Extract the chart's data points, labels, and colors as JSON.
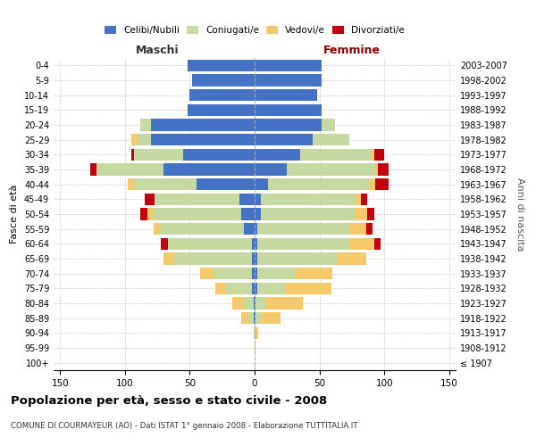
{
  "age_groups": [
    "100+",
    "95-99",
    "90-94",
    "85-89",
    "80-84",
    "75-79",
    "70-74",
    "65-69",
    "60-64",
    "55-59",
    "50-54",
    "45-49",
    "40-44",
    "35-39",
    "30-34",
    "25-29",
    "20-24",
    "15-19",
    "10-14",
    "5-9",
    "0-4"
  ],
  "birth_years": [
    "≤ 1907",
    "1908-1912",
    "1913-1917",
    "1918-1922",
    "1923-1927",
    "1928-1932",
    "1933-1937",
    "1938-1942",
    "1943-1947",
    "1948-1952",
    "1953-1957",
    "1958-1962",
    "1963-1967",
    "1968-1972",
    "1973-1977",
    "1978-1982",
    "1983-1987",
    "1988-1992",
    "1993-1997",
    "1998-2002",
    "2003-2007"
  ],
  "male_celibi": [
    0,
    0,
    0,
    1,
    1,
    2,
    2,
    2,
    2,
    8,
    10,
    12,
    45,
    70,
    55,
    80,
    80,
    52,
    50,
    48,
    52
  ],
  "male_coniugati": [
    0,
    0,
    1,
    4,
    8,
    20,
    30,
    60,
    65,
    65,
    68,
    65,
    48,
    52,
    38,
    10,
    8,
    0,
    0,
    0,
    0
  ],
  "male_vedovi": [
    0,
    0,
    0,
    5,
    8,
    8,
    10,
    8,
    0,
    5,
    5,
    0,
    5,
    0,
    0,
    5,
    0,
    0,
    0,
    0,
    0
  ],
  "male_divorziati": [
    0,
    0,
    0,
    0,
    0,
    0,
    0,
    0,
    5,
    0,
    5,
    8,
    0,
    5,
    2,
    0,
    0,
    0,
    0,
    0,
    0
  ],
  "fem_nubili": [
    0,
    0,
    0,
    1,
    1,
    2,
    2,
    2,
    2,
    2,
    5,
    5,
    10,
    25,
    35,
    45,
    52,
    52,
    48,
    52,
    52
  ],
  "fem_coniugate": [
    0,
    0,
    1,
    4,
    8,
    22,
    30,
    62,
    72,
    72,
    72,
    72,
    78,
    68,
    55,
    28,
    10,
    0,
    0,
    0,
    0
  ],
  "fem_vedove": [
    0,
    1,
    2,
    15,
    28,
    35,
    28,
    22,
    18,
    12,
    10,
    5,
    5,
    2,
    2,
    0,
    0,
    0,
    0,
    0,
    0
  ],
  "fem_divorziate": [
    0,
    0,
    0,
    0,
    0,
    0,
    0,
    0,
    5,
    5,
    5,
    5,
    10,
    8,
    8,
    0,
    0,
    0,
    0,
    0,
    0
  ],
  "colors": {
    "celibi_nubili": "#4472C4",
    "coniugati": "#C5D9A0",
    "vedovi": "#F5C96A",
    "divorziati": "#C0000C"
  },
  "xlim": 155,
  "title": "Popolazione per età, sesso e stato civile - 2008",
  "subtitle": "COMUNE DI COURMAYEUR (AO) - Dati ISTAT 1° gennaio 2008 - Elaborazione TUTTITALIA.IT",
  "ylabel_left": "Fasce di età",
  "ylabel_right": "Anni di nascita",
  "xlabel_left": "Maschi",
  "xlabel_right": "Femmine"
}
